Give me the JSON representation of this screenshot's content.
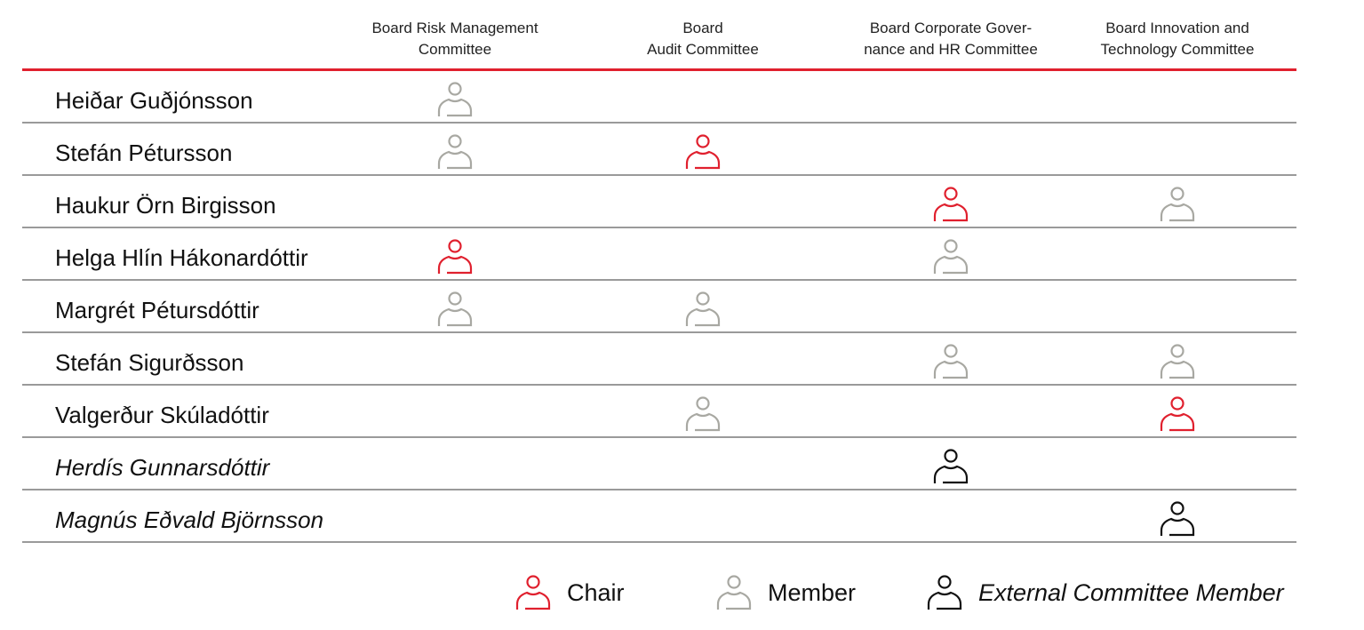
{
  "colors": {
    "chair": "#e0202e",
    "member": "#a8a8a2",
    "external": "#111111",
    "header_rule": "#e0202e"
  },
  "committees": [
    {
      "label_lines": [
        "Board Risk Management",
        "Committee"
      ]
    },
    {
      "label_lines": [
        "Board",
        "Audit Committee"
      ]
    },
    {
      "label_lines": [
        "Board Corporate Gover-",
        "nance and HR Committee"
      ]
    },
    {
      "label_lines": [
        "Board Innovation and",
        "Technology Committee"
      ]
    }
  ],
  "members": [
    {
      "name": "Heiðar Guðjónsson",
      "external": false,
      "roles": [
        "member",
        null,
        null,
        null
      ]
    },
    {
      "name": "Stefán Pétursson",
      "external": false,
      "roles": [
        "member",
        "chair",
        null,
        null
      ]
    },
    {
      "name": "Haukur Örn Birgisson",
      "external": false,
      "roles": [
        null,
        null,
        "chair",
        "member"
      ]
    },
    {
      "name": "Helga Hlín Hákonardóttir",
      "external": false,
      "roles": [
        "chair",
        null,
        "member",
        null
      ]
    },
    {
      "name": "Margrét Pétursdóttir",
      "external": false,
      "roles": [
        "member",
        "member",
        null,
        null
      ]
    },
    {
      "name": "Stefán Sigurðsson",
      "external": false,
      "roles": [
        null,
        null,
        "member",
        "member"
      ]
    },
    {
      "name": "Valgerður Skúladóttir",
      "external": false,
      "roles": [
        null,
        "member",
        null,
        "chair"
      ]
    },
    {
      "name": "Herdís Gunnarsdóttir",
      "external": true,
      "roles": [
        null,
        null,
        "external",
        null
      ]
    },
    {
      "name": "Magnús Eðvald Björnsson",
      "external": true,
      "roles": [
        null,
        null,
        null,
        "external"
      ]
    }
  ],
  "legend": [
    {
      "role": "chair",
      "label": "Chair"
    },
    {
      "role": "member",
      "label": "Member"
    },
    {
      "role": "external",
      "label": "External Committee Member"
    }
  ]
}
